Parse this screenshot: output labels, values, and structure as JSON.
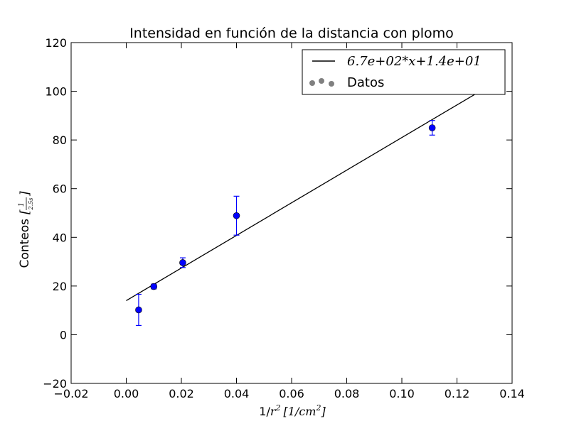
{
  "chart_data": {
    "type": "scatter",
    "title": "Intensidad en función de la distancia con plomo",
    "xlabel": {
      "prefix": "1/",
      "var": "r",
      "sup": "2",
      "unit": "[1/cm",
      "unit_sup": "2",
      "unit_close": "]"
    },
    "ylabel": {
      "text": "Conteos",
      "unit_num": "1",
      "unit_den": "2.5s"
    },
    "xlim": [
      -0.02,
      0.14
    ],
    "ylim": [
      -20,
      120
    ],
    "xticks": [
      -0.02,
      0.0,
      0.02,
      0.04,
      0.06,
      0.08,
      0.1,
      0.12,
      0.14
    ],
    "xtick_labels": [
      "−0.02",
      "0.00",
      "0.02",
      "0.04",
      "0.06",
      "0.08",
      "0.10",
      "0.12",
      "0.14"
    ],
    "yticks": [
      -20,
      0,
      20,
      40,
      60,
      80,
      100,
      120
    ],
    "ytick_labels": [
      "−20",
      "0",
      "20",
      "40",
      "60",
      "80",
      "100",
      "120"
    ],
    "series": [
      {
        "name": "Datos",
        "kind": "scatter",
        "color": "#0000ff",
        "x": [
          0.0045,
          0.01,
          0.0205,
          0.04,
          0.111
        ],
        "y": [
          10.2,
          19.8,
          29.6,
          48.9,
          85.0
        ],
        "yerr": [
          6.4,
          1.0,
          2.0,
          8.0,
          3.0
        ]
      },
      {
        "name": "6.7e+02*x+1.4e+01",
        "kind": "line",
        "color": "#000000",
        "slope": 670,
        "intercept": 14,
        "x_range": [
          0.0,
          0.128
        ]
      }
    ],
    "legend": {
      "position": "top-right",
      "line_label": "6.7e+02*x+1.4e+01",
      "points_label": "Datos",
      "points_color": "#808080"
    }
  }
}
